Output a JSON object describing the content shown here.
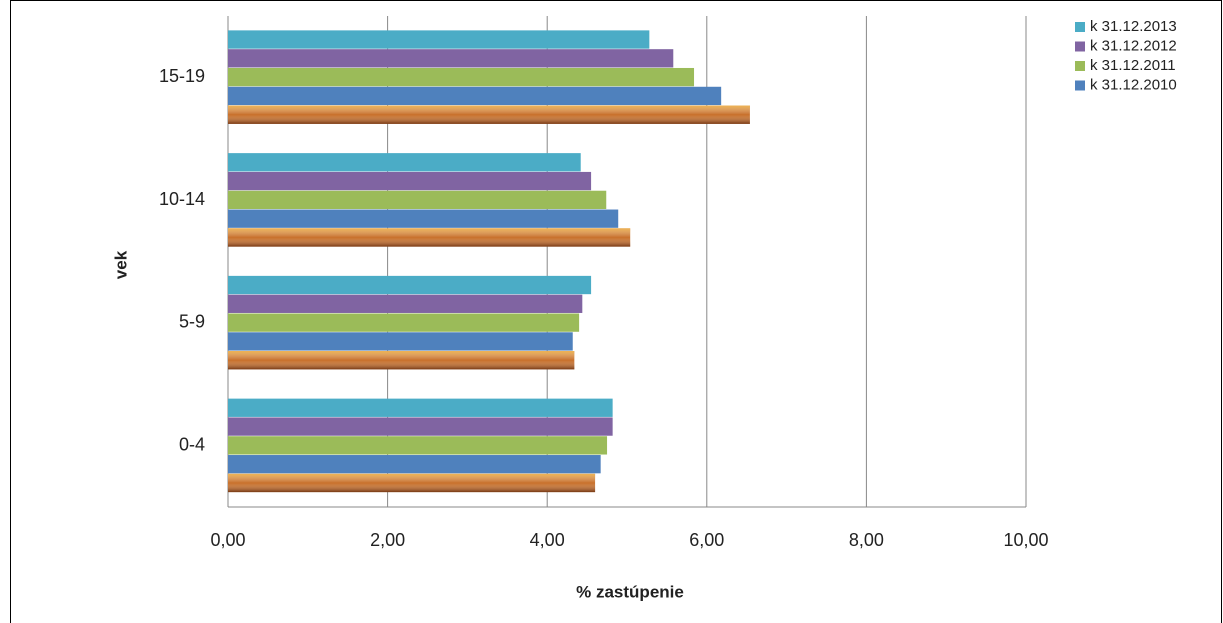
{
  "chart_data": {
    "type": "hbar",
    "categories": [
      "0-4",
      "5-9",
      "10-14",
      "15-19"
    ],
    "series": [
      {
        "name": "k 31.12.2013",
        "color": "#4bacc6",
        "values": [
          4.82,
          4.55,
          4.42,
          5.28
        ]
      },
      {
        "name": "k 31.12.2012",
        "color": "#8064a2",
        "values": [
          4.82,
          4.44,
          4.55,
          5.58
        ]
      },
      {
        "name": "k 31.12.2011",
        "color": "#9bbb59",
        "values": [
          4.75,
          4.4,
          4.74,
          5.84
        ]
      },
      {
        "name": "k 31.12.2010",
        "color": "#4f81bd",
        "values": [
          4.67,
          4.32,
          4.89,
          6.18
        ]
      },
      {
        "color": "#c8702a",
        "values": [
          4.6,
          4.34,
          5.04,
          6.54
        ]
      }
    ],
    "xlim": [
      0,
      10
    ],
    "xticks": [
      {
        "value": 0,
        "label": "0,00"
      },
      {
        "value": 2,
        "label": "2,00"
      },
      {
        "value": 4,
        "label": "4,00"
      },
      {
        "value": 6,
        "label": "6,00"
      },
      {
        "value": 8,
        "label": "8,00"
      },
      {
        "value": 10,
        "label": "10,00"
      }
    ],
    "xlabel": "% zastúpenie",
    "ylabel": "vek",
    "grid": true,
    "legend": "top-right"
  }
}
